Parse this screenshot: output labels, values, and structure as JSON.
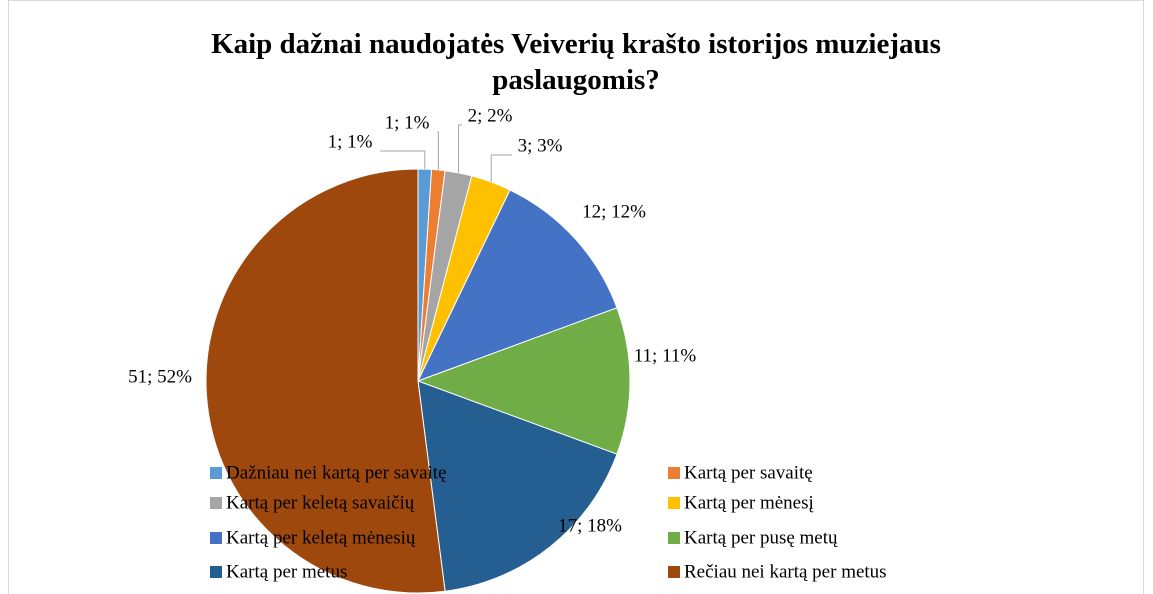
{
  "chart_data": {
    "type": "pie",
    "title": "Kaip dažnai naudojatės Veiverių krašto istorijos muziejaus paslaugomis?",
    "categories": [
      "Dažniau nei kartą per savaitę",
      "Kartą per savaitę",
      "Kartą per keletą savaičių",
      "Kartą per mėnesį",
      "Kartą per keletą mėnesių",
      "Kartą per pusę metų",
      "Kartą per metus",
      "Rečiau nei kartą per metus"
    ],
    "values": [
      1,
      1,
      2,
      3,
      12,
      11,
      17,
      51
    ],
    "value_labels": [
      "1; 1%",
      "1; 1%",
      "2; 2%",
      "3; 3%",
      "12; 12%",
      "11; 11%",
      "17; 18%",
      "51; 52%"
    ],
    "colors": [
      "#5b9bd5",
      "#ed7d31",
      "#a5a5a5",
      "#ffc000",
      "#4472c4",
      "#70ad47",
      "#255e91",
      "#9e480e"
    ],
    "legend": "bottom"
  }
}
